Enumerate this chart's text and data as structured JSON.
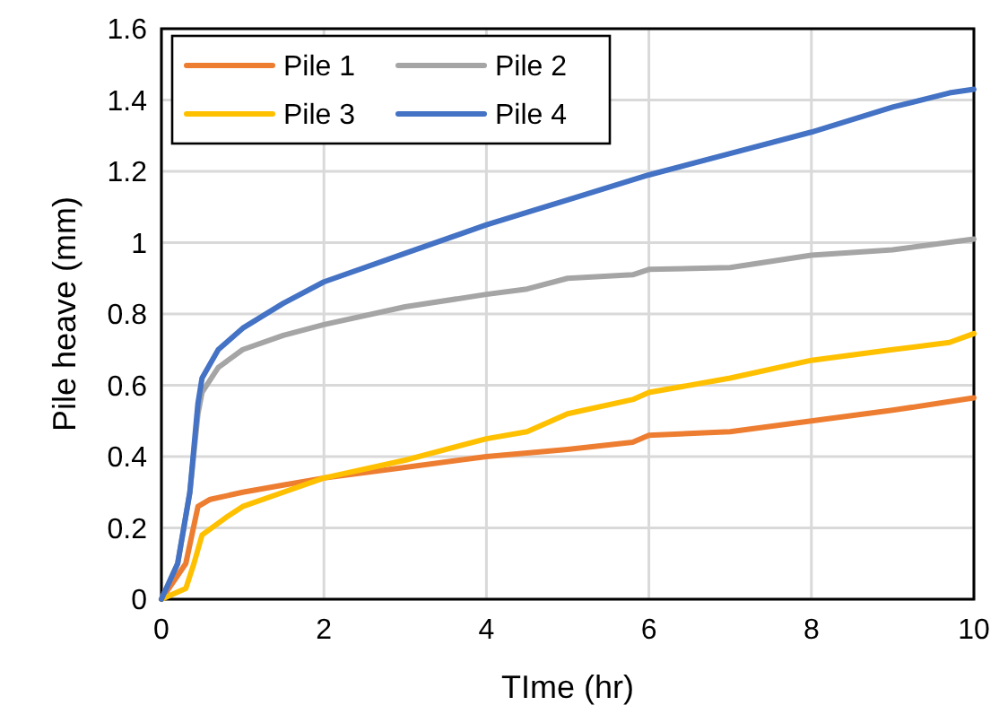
{
  "chart_data": {
    "type": "line",
    "xlabel": "TIme (hr)",
    "ylabel": "Pile heave (mm)",
    "xlim": [
      0,
      10
    ],
    "xticks": [
      0,
      2,
      4,
      6,
      8,
      10
    ],
    "ylim": [
      0,
      1.6
    ],
    "yticks": [
      0,
      0.2,
      0.4,
      0.6,
      0.8,
      1,
      1.2,
      1.4,
      1.6
    ],
    "grid": true,
    "legend": "top left",
    "marker": "none",
    "line_style": "solid",
    "series": [
      {
        "name": "Pile 1",
        "color": "#ed7d31",
        "x": [
          0,
          0.3,
          0.45,
          0.6,
          1,
          1.5,
          2,
          3,
          4,
          5,
          5.8,
          6,
          7,
          8,
          9,
          10
        ],
        "values": [
          0,
          0.1,
          0.26,
          0.28,
          0.3,
          0.32,
          0.34,
          0.37,
          0.4,
          0.42,
          0.44,
          0.46,
          0.47,
          0.5,
          0.53,
          0.565
        ]
      },
      {
        "name": "Pile 2",
        "color": "#a5a5a5",
        "x": [
          0,
          0.2,
          0.35,
          0.45,
          0.5,
          0.7,
          1,
          1.5,
          2,
          3,
          4,
          4.5,
          5,
          5.8,
          6,
          7,
          8,
          9,
          10
        ],
        "values": [
          0,
          0.1,
          0.3,
          0.52,
          0.58,
          0.65,
          0.7,
          0.74,
          0.77,
          0.82,
          0.855,
          0.87,
          0.9,
          0.91,
          0.925,
          0.93,
          0.965,
          0.98,
          1.01
        ]
      },
      {
        "name": "Pile 3",
        "color": "#ffc000",
        "x": [
          0,
          0.3,
          0.4,
          0.5,
          0.8,
          1,
          1.5,
          2,
          3,
          4,
          4.5,
          5,
          5.8,
          6,
          7,
          8,
          9,
          9.7,
          10
        ],
        "values": [
          0,
          0.03,
          0.1,
          0.18,
          0.23,
          0.26,
          0.3,
          0.34,
          0.39,
          0.45,
          0.47,
          0.52,
          0.56,
          0.58,
          0.62,
          0.67,
          0.7,
          0.72,
          0.745
        ]
      },
      {
        "name": "Pile 4",
        "color": "#4472c4",
        "x": [
          0,
          0.2,
          0.35,
          0.45,
          0.5,
          0.7,
          1,
          1.5,
          2,
          3,
          4,
          5,
          6,
          7,
          8,
          9,
          9.7,
          10
        ],
        "values": [
          0,
          0.1,
          0.3,
          0.55,
          0.62,
          0.7,
          0.76,
          0.83,
          0.89,
          0.97,
          1.05,
          1.12,
          1.19,
          1.25,
          1.31,
          1.38,
          1.42,
          1.43
        ]
      }
    ]
  }
}
